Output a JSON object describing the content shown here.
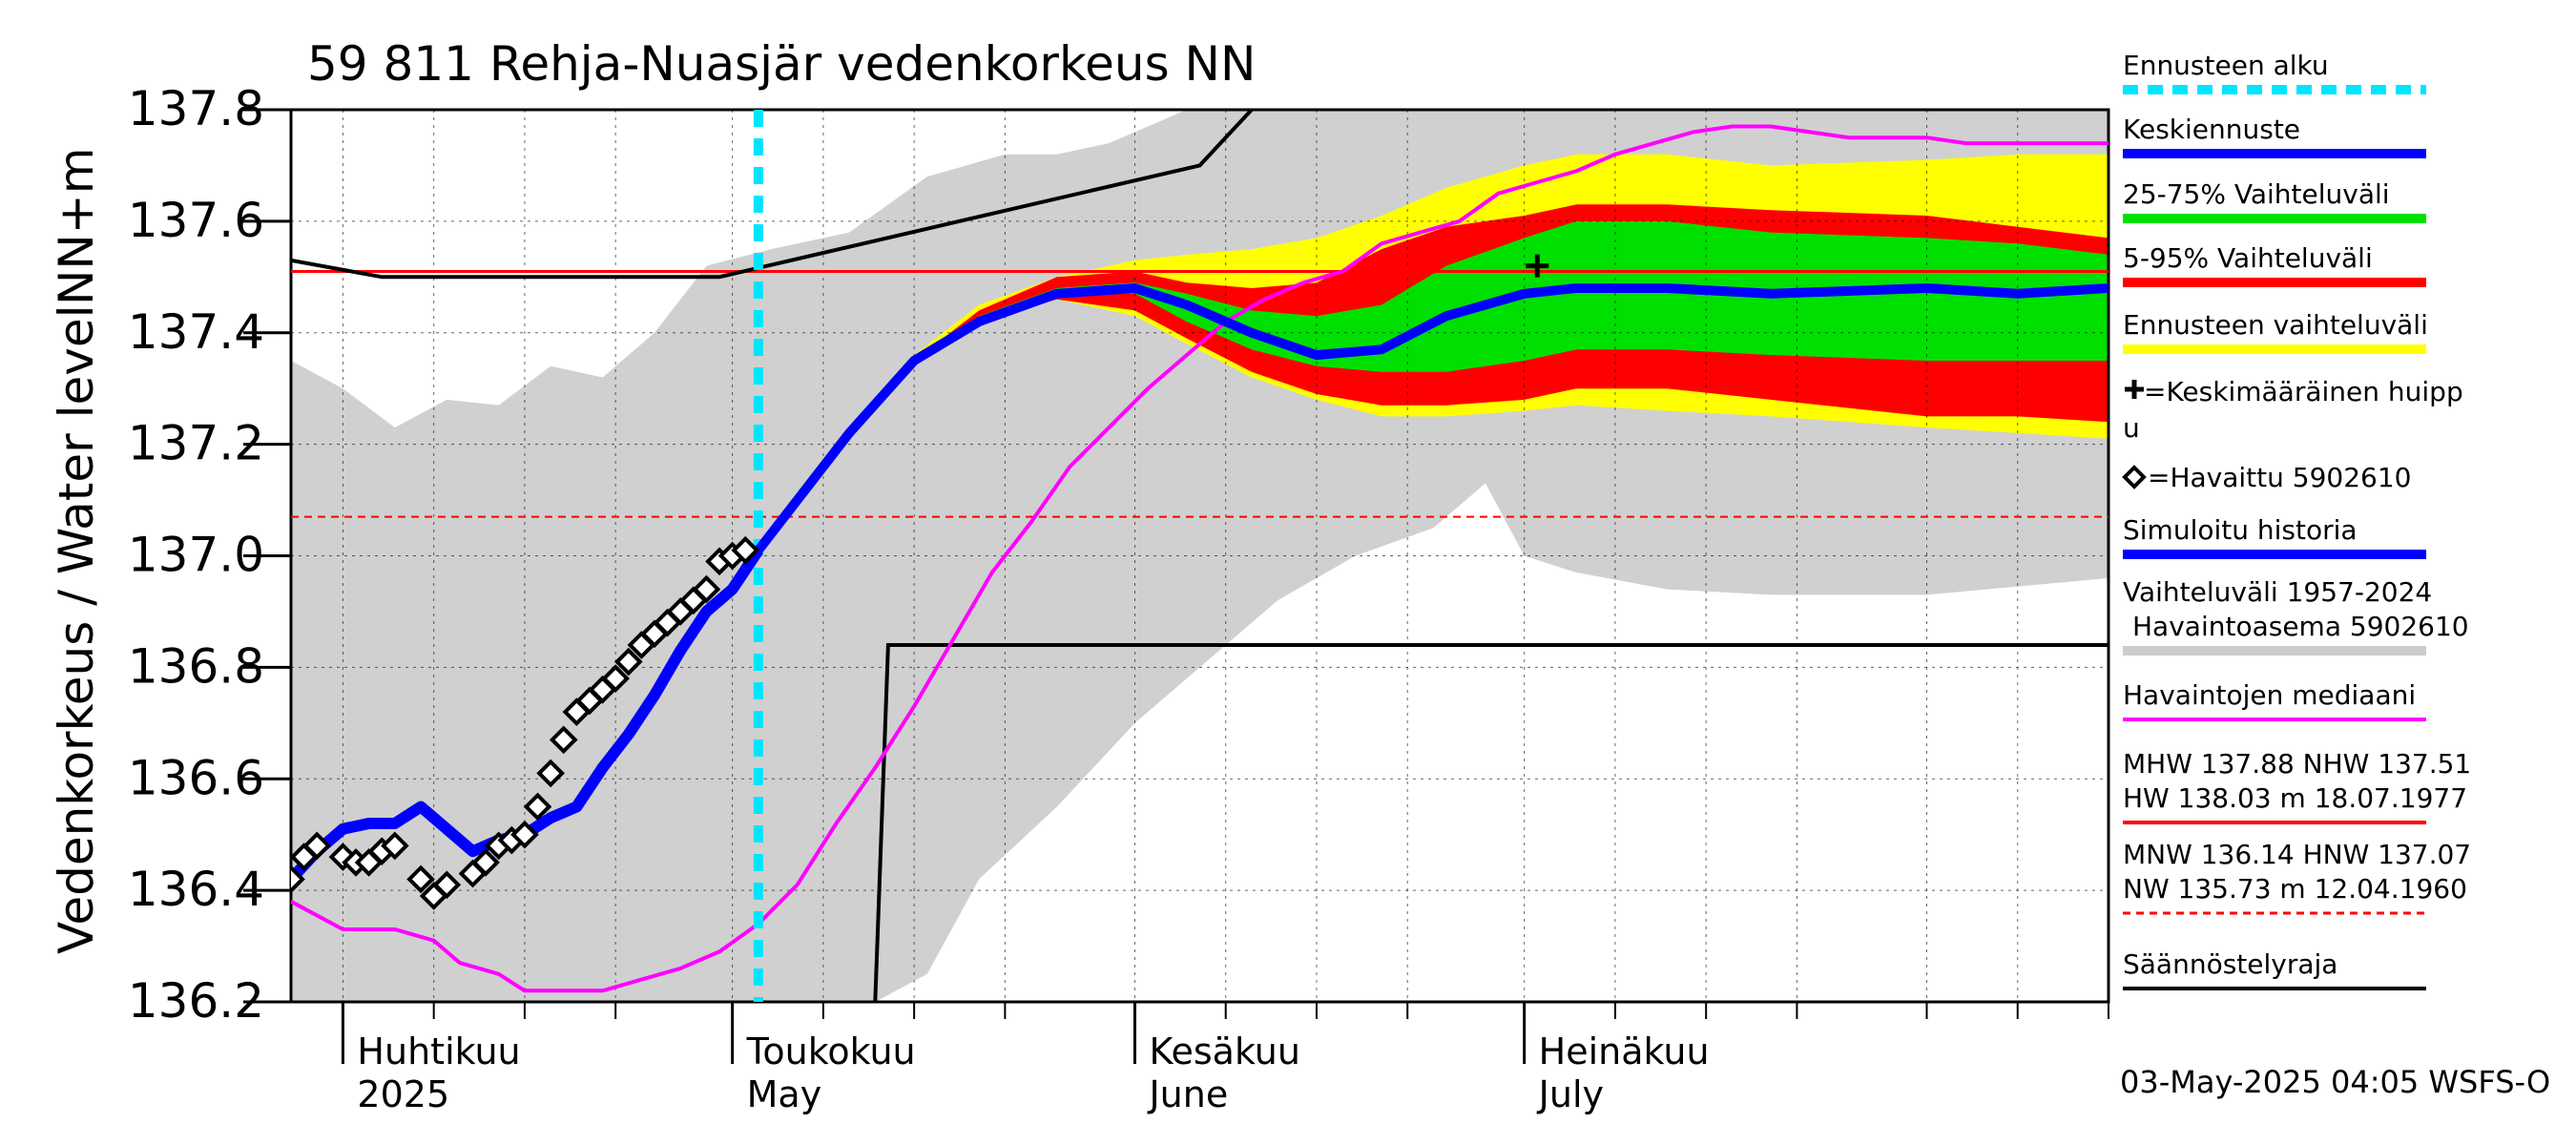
{
  "chart_data": {
    "type": "line",
    "title": "59 811 Rehja-Nuasjär vedenkorkeus NN",
    "ylabel_left": "Vedenkorkeus / Water level",
    "ylabel_unit": "NN+m",
    "ylim": [
      136.2,
      137.8
    ],
    "yticks": [
      136.2,
      136.4,
      136.6,
      136.8,
      137.0,
      137.2,
      137.4,
      137.6,
      137.8
    ],
    "ytick_labels": [
      "136.2",
      "136.4",
      "136.6",
      "136.8",
      "137.0",
      "137.2",
      "137.4",
      "137.6",
      "137.8"
    ],
    "x_start": "2025-03-28",
    "x_end": "2025-08-15",
    "forecast_start": "2025-05-03",
    "month_labels": [
      {
        "date": "2025-04-01",
        "fi": "Huhtikuu",
        "en": "2025"
      },
      {
        "date": "2025-05-01",
        "fi": "Toukokuu",
        "en": "May"
      },
      {
        "date": "2025-06-01",
        "fi": "Kesäkuu",
        "en": "June"
      },
      {
        "date": "2025-07-01",
        "fi": "Heinäkuu",
        "en": "July"
      }
    ],
    "timestamp": "03-May-2025 04:05 WSFS-O",
    "reference_lines": {
      "HNW": 137.51,
      "MNW_dashed": 137.07
    },
    "regulation_limit": [
      [
        "2025-03-28",
        137.53
      ],
      [
        "2025-04-04",
        137.5
      ],
      [
        "2025-04-30",
        137.5
      ],
      [
        "2025-06-06",
        137.7
      ],
      [
        "2025-06-10",
        137.8
      ]
    ],
    "regulation_lower": [
      [
        "2025-05-12",
        136.2
      ],
      [
        "2025-05-13",
        136.84
      ],
      [
        "2025-08-15",
        136.84
      ]
    ],
    "historical_range": {
      "upper": [
        [
          "2025-03-28",
          137.35
        ],
        [
          "2025-04-01",
          137.3
        ],
        [
          "2025-04-05",
          137.23
        ],
        [
          "2025-04-09",
          137.28
        ],
        [
          "2025-04-13",
          137.27
        ],
        [
          "2025-04-17",
          137.34
        ],
        [
          "2025-04-21",
          137.32
        ],
        [
          "2025-04-25",
          137.4
        ],
        [
          "2025-04-29",
          137.52
        ],
        [
          "2025-05-04",
          137.55
        ],
        [
          "2025-05-10",
          137.58
        ],
        [
          "2025-05-16",
          137.68
        ],
        [
          "2025-05-22",
          137.72
        ],
        [
          "2025-05-26",
          137.72
        ],
        [
          "2025-05-30",
          137.74
        ],
        [
          "2025-06-05",
          137.8
        ],
        [
          "2025-08-15",
          137.8
        ]
      ],
      "lower": [
        [
          "2025-03-28",
          136.2
        ],
        [
          "2025-05-12",
          136.2
        ],
        [
          "2025-05-16",
          136.25
        ],
        [
          "2025-05-20",
          136.42
        ],
        [
          "2025-05-26",
          136.55
        ],
        [
          "2025-06-01",
          136.7
        ],
        [
          "2025-06-06",
          136.8
        ],
        [
          "2025-06-12",
          136.92
        ],
        [
          "2025-06-18",
          137.0
        ],
        [
          "2025-06-24",
          137.05
        ],
        [
          "2025-06-28",
          137.13
        ],
        [
          "2025-07-01",
          137.0
        ],
        [
          "2025-07-05",
          136.97
        ],
        [
          "2025-07-12",
          136.94
        ],
        [
          "2025-07-20",
          136.93
        ],
        [
          "2025-08-01",
          136.93
        ],
        [
          "2025-08-15",
          136.96
        ]
      ]
    },
    "forecast_range_total": {
      "upper": [
        [
          "2025-05-03",
          137.01
        ],
        [
          "2025-05-10",
          137.23
        ],
        [
          "2025-05-15",
          137.36
        ],
        [
          "2025-05-20",
          137.45
        ],
        [
          "2025-05-26",
          137.5
        ],
        [
          "2025-06-01",
          137.53
        ],
        [
          "2025-06-05",
          137.54
        ],
        [
          "2025-06-10",
          137.55
        ],
        [
          "2025-06-15",
          137.57
        ],
        [
          "2025-06-20",
          137.61
        ],
        [
          "2025-06-25",
          137.66
        ],
        [
          "2025-07-01",
          137.7
        ],
        [
          "2025-07-05",
          137.72
        ],
        [
          "2025-07-12",
          137.72
        ],
        [
          "2025-07-20",
          137.7
        ],
        [
          "2025-08-01",
          137.71
        ],
        [
          "2025-08-08",
          137.72
        ],
        [
          "2025-08-15",
          137.72
        ]
      ],
      "lower": [
        [
          "2025-05-03",
          137.01
        ],
        [
          "2025-05-10",
          137.22
        ],
        [
          "2025-05-15",
          137.35
        ],
        [
          "2025-05-20",
          137.42
        ],
        [
          "2025-05-26",
          137.46
        ],
        [
          "2025-06-01",
          137.43
        ],
        [
          "2025-06-05",
          137.38
        ],
        [
          "2025-06-10",
          137.32
        ],
        [
          "2025-06-15",
          137.28
        ],
        [
          "2025-06-20",
          137.25
        ],
        [
          "2025-06-25",
          137.25
        ],
        [
          "2025-07-01",
          137.26
        ],
        [
          "2025-07-05",
          137.27
        ],
        [
          "2025-07-12",
          137.26
        ],
        [
          "2025-07-20",
          137.25
        ],
        [
          "2025-08-01",
          137.23
        ],
        [
          "2025-08-08",
          137.22
        ],
        [
          "2025-08-15",
          137.21
        ]
      ]
    },
    "forecast_range_5_95": {
      "upper": [
        [
          "2025-05-03",
          137.01
        ],
        [
          "2025-05-10",
          137.23
        ],
        [
          "2025-05-15",
          137.35
        ],
        [
          "2025-05-20",
          137.44
        ],
        [
          "2025-05-26",
          137.5
        ],
        [
          "2025-06-01",
          137.51
        ],
        [
          "2025-06-05",
          137.49
        ],
        [
          "2025-06-10",
          137.48
        ],
        [
          "2025-06-15",
          137.49
        ],
        [
          "2025-06-20",
          137.55
        ],
        [
          "2025-06-25",
          137.59
        ],
        [
          "2025-07-01",
          137.61
        ],
        [
          "2025-07-05",
          137.63
        ],
        [
          "2025-07-12",
          137.63
        ],
        [
          "2025-07-20",
          137.62
        ],
        [
          "2025-08-01",
          137.61
        ],
        [
          "2025-08-08",
          137.59
        ],
        [
          "2025-08-15",
          137.57
        ]
      ],
      "lower": [
        [
          "2025-05-03",
          137.01
        ],
        [
          "2025-05-10",
          137.22
        ],
        [
          "2025-05-15",
          137.35
        ],
        [
          "2025-05-20",
          137.42
        ],
        [
          "2025-05-26",
          137.46
        ],
        [
          "2025-06-01",
          137.44
        ],
        [
          "2025-06-05",
          137.39
        ],
        [
          "2025-06-10",
          137.33
        ],
        [
          "2025-06-15",
          137.29
        ],
        [
          "2025-06-20",
          137.27
        ],
        [
          "2025-06-25",
          137.27
        ],
        [
          "2025-07-01",
          137.28
        ],
        [
          "2025-07-05",
          137.3
        ],
        [
          "2025-07-12",
          137.3
        ],
        [
          "2025-07-20",
          137.28
        ],
        [
          "2025-08-01",
          137.25
        ],
        [
          "2025-08-08",
          137.25
        ],
        [
          "2025-08-15",
          137.24
        ]
      ]
    },
    "forecast_range_25_75": {
      "upper": [
        [
          "2025-05-03",
          137.01
        ],
        [
          "2025-05-10",
          137.22
        ],
        [
          "2025-05-15",
          137.35
        ],
        [
          "2025-05-20",
          137.43
        ],
        [
          "2025-05-26",
          137.48
        ],
        [
          "2025-06-01",
          137.49
        ],
        [
          "2025-06-05",
          137.47
        ],
        [
          "2025-06-10",
          137.44
        ],
        [
          "2025-06-15",
          137.43
        ],
        [
          "2025-06-20",
          137.45
        ],
        [
          "2025-06-25",
          137.52
        ],
        [
          "2025-07-01",
          137.57
        ],
        [
          "2025-07-05",
          137.6
        ],
        [
          "2025-07-12",
          137.6
        ],
        [
          "2025-07-20",
          137.58
        ],
        [
          "2025-08-01",
          137.57
        ],
        [
          "2025-08-08",
          137.56
        ],
        [
          "2025-08-15",
          137.54
        ]
      ],
      "lower": [
        [
          "2025-05-03",
          137.01
        ],
        [
          "2025-05-10",
          137.22
        ],
        [
          "2025-05-15",
          137.35
        ],
        [
          "2025-05-20",
          137.42
        ],
        [
          "2025-05-26",
          137.47
        ],
        [
          "2025-06-01",
          137.47
        ],
        [
          "2025-06-05",
          137.42
        ],
        [
          "2025-06-10",
          137.37
        ],
        [
          "2025-06-15",
          137.34
        ],
        [
          "2025-06-20",
          137.33
        ],
        [
          "2025-06-25",
          137.33
        ],
        [
          "2025-07-01",
          137.35
        ],
        [
          "2025-07-05",
          137.37
        ],
        [
          "2025-07-12",
          137.37
        ],
        [
          "2025-07-20",
          137.36
        ],
        [
          "2025-08-01",
          137.35
        ],
        [
          "2025-08-08",
          137.35
        ],
        [
          "2025-08-15",
          137.35
        ]
      ]
    },
    "mean_forecast": [
      [
        "2025-05-03",
        137.01
      ],
      [
        "2025-05-10",
        137.22
      ],
      [
        "2025-05-15",
        137.35
      ],
      [
        "2025-05-20",
        137.42
      ],
      [
        "2025-05-26",
        137.47
      ],
      [
        "2025-06-01",
        137.48
      ],
      [
        "2025-06-05",
        137.45
      ],
      [
        "2025-06-10",
        137.4
      ],
      [
        "2025-06-15",
        137.36
      ],
      [
        "2025-06-20",
        137.37
      ],
      [
        "2025-06-25",
        137.43
      ],
      [
        "2025-07-01",
        137.47
      ],
      [
        "2025-07-05",
        137.48
      ],
      [
        "2025-07-12",
        137.48
      ],
      [
        "2025-07-20",
        137.47
      ],
      [
        "2025-08-01",
        137.48
      ],
      [
        "2025-08-08",
        137.47
      ],
      [
        "2025-08-15",
        137.48
      ]
    ],
    "simulated_history": [
      [
        "2025-03-28",
        136.42
      ],
      [
        "2025-03-30",
        136.47
      ],
      [
        "2025-04-01",
        136.51
      ],
      [
        "2025-04-03",
        136.52
      ],
      [
        "2025-04-05",
        136.52
      ],
      [
        "2025-04-07",
        136.55
      ],
      [
        "2025-04-09",
        136.51
      ],
      [
        "2025-04-11",
        136.47
      ],
      [
        "2025-04-13",
        136.49
      ],
      [
        "2025-04-15",
        136.5
      ],
      [
        "2025-04-17",
        136.53
      ],
      [
        "2025-04-19",
        136.55
      ],
      [
        "2025-04-21",
        136.62
      ],
      [
        "2025-04-23",
        136.68
      ],
      [
        "2025-04-25",
        136.75
      ],
      [
        "2025-04-27",
        136.83
      ],
      [
        "2025-04-29",
        136.9
      ],
      [
        "2025-05-01",
        136.94
      ],
      [
        "2025-05-03",
        137.01
      ]
    ],
    "observed": [
      [
        "2025-03-28",
        136.42
      ],
      [
        "2025-03-29",
        136.46
      ],
      [
        "2025-03-30",
        136.48
      ],
      [
        "2025-04-01",
        136.46
      ],
      [
        "2025-04-02",
        136.45
      ],
      [
        "2025-04-03",
        136.45
      ],
      [
        "2025-04-04",
        136.47
      ],
      [
        "2025-04-05",
        136.48
      ],
      [
        "2025-04-07",
        136.42
      ],
      [
        "2025-04-08",
        136.39
      ],
      [
        "2025-04-09",
        136.41
      ],
      [
        "2025-04-11",
        136.43
      ],
      [
        "2025-04-12",
        136.45
      ],
      [
        "2025-04-13",
        136.48
      ],
      [
        "2025-04-14",
        136.49
      ],
      [
        "2025-04-15",
        136.5
      ],
      [
        "2025-04-16",
        136.55
      ],
      [
        "2025-04-17",
        136.61
      ],
      [
        "2025-04-18",
        136.67
      ],
      [
        "2025-04-19",
        136.72
      ],
      [
        "2025-04-20",
        136.74
      ],
      [
        "2025-04-21",
        136.76
      ],
      [
        "2025-04-22",
        136.78
      ],
      [
        "2025-04-23",
        136.81
      ],
      [
        "2025-04-24",
        136.84
      ],
      [
        "2025-04-25",
        136.86
      ],
      [
        "2025-04-26",
        136.88
      ],
      [
        "2025-04-27",
        136.9
      ],
      [
        "2025-04-28",
        136.92
      ],
      [
        "2025-04-29",
        136.94
      ],
      [
        "2025-04-30",
        136.99
      ],
      [
        "2025-05-01",
        137.0
      ],
      [
        "2025-05-02",
        137.01
      ]
    ],
    "median_observed": [
      [
        "2025-03-28",
        136.38
      ],
      [
        "2025-04-01",
        136.33
      ],
      [
        "2025-04-05",
        136.33
      ],
      [
        "2025-04-08",
        136.31
      ],
      [
        "2025-04-10",
        136.27
      ],
      [
        "2025-04-13",
        136.25
      ],
      [
        "2025-04-15",
        136.22
      ],
      [
        "2025-04-18",
        136.22
      ],
      [
        "2025-04-21",
        136.22
      ],
      [
        "2025-04-24",
        136.24
      ],
      [
        "2025-04-27",
        136.26
      ],
      [
        "2025-04-30",
        136.29
      ],
      [
        "2025-05-03",
        136.34
      ],
      [
        "2025-05-06",
        136.41
      ],
      [
        "2025-05-09",
        136.52
      ],
      [
        "2025-05-12",
        136.62
      ],
      [
        "2025-05-15",
        136.73
      ],
      [
        "2025-05-18",
        136.85
      ],
      [
        "2025-05-21",
        136.97
      ],
      [
        "2025-05-24",
        137.06
      ],
      [
        "2025-05-27",
        137.16
      ],
      [
        "2025-05-30",
        137.23
      ],
      [
        "2025-06-02",
        137.3
      ],
      [
        "2025-06-05",
        137.36
      ],
      [
        "2025-06-08",
        137.42
      ],
      [
        "2025-06-11",
        137.46
      ],
      [
        "2025-06-14",
        137.49
      ],
      [
        "2025-06-17",
        137.51
      ],
      [
        "2025-06-20",
        137.56
      ],
      [
        "2025-06-23",
        137.58
      ],
      [
        "2025-06-26",
        137.6
      ],
      [
        "2025-06-29",
        137.65
      ],
      [
        "2025-07-02",
        137.67
      ],
      [
        "2025-07-05",
        137.69
      ],
      [
        "2025-07-08",
        137.72
      ],
      [
        "2025-07-11",
        137.74
      ],
      [
        "2025-07-14",
        137.76
      ],
      [
        "2025-07-17",
        137.77
      ],
      [
        "2025-07-20",
        137.77
      ],
      [
        "2025-07-23",
        137.76
      ],
      [
        "2025-07-26",
        137.75
      ],
      [
        "2025-07-29",
        137.75
      ],
      [
        "2025-08-01",
        137.75
      ],
      [
        "2025-08-04",
        137.74
      ],
      [
        "2025-08-07",
        137.74
      ],
      [
        "2025-08-10",
        137.74
      ],
      [
        "2025-08-15",
        137.74
      ]
    ],
    "mean_peak": {
      "date": "2025-07-02",
      "value": 137.52
    },
    "legend": [
      {
        "label": "Ennusteen alku",
        "color": "#00e5ff",
        "style": "dashed"
      },
      {
        "label": "Keskiennuste",
        "color": "#0000ff",
        "style": "thick"
      },
      {
        "label": "25-75% Vaihteluväli",
        "color": "#00e000",
        "style": "thick"
      },
      {
        "label": "5-95% Vaihteluväli",
        "color": "#ff0000",
        "style": "thick"
      },
      {
        "label": "Ennusteen vaihteluväli",
        "color": "#ffff00",
        "style": "thick"
      },
      {
        "label": "=Keskimääräinen huippu",
        "color": "#000000",
        "style": "plus"
      },
      {
        "label": "=Havaittu 5902610",
        "color": "#000000",
        "style": "diamond"
      },
      {
        "label": "Simuloitu historia",
        "color": "#0000ff",
        "style": "thick"
      },
      {
        "label": "Vaihteluväli 1957-2024",
        "label2": "Havaintoasema 5902610",
        "color": "#cccccc",
        "style": "thick"
      },
      {
        "label": "Havaintojen mediaani",
        "color": "#ff00ff",
        "style": "thin"
      },
      {
        "label": "MHW 137.88 NHW 137.51",
        "label2": "HW 138.03 m 18.07.1977",
        "color": "#ff0000",
        "style": "thin"
      },
      {
        "label": "MNW 136.14 HNW 137.07",
        "label2": "NW 135.73 m 12.04.1960",
        "color": "#ff0000",
        "style": "dashed-thin"
      },
      {
        "label": "Säännöstelyraja",
        "color": "#000000",
        "style": "thin"
      }
    ]
  }
}
